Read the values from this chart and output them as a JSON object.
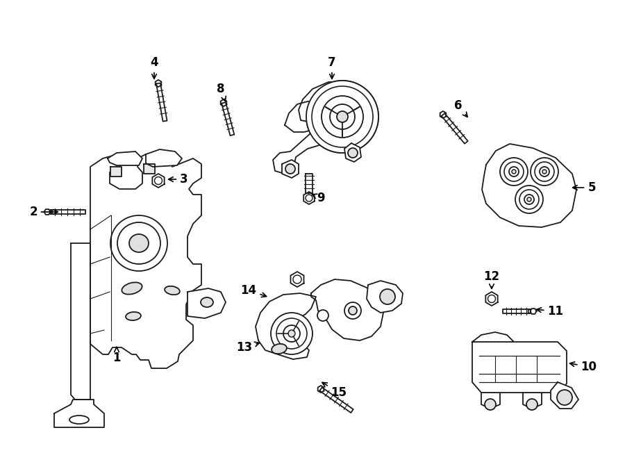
{
  "background": "#ffffff",
  "line_color": "#1a1a1a",
  "callouts": [
    [
      "1",
      168,
      515,
      168,
      495
    ],
    [
      "2",
      48,
      305,
      88,
      305
    ],
    [
      "3",
      265,
      258,
      238,
      258
    ],
    [
      "4",
      222,
      90,
      222,
      118
    ],
    [
      "5",
      852,
      270,
      820,
      270
    ],
    [
      "6",
      660,
      152,
      676,
      172
    ],
    [
      "7",
      478,
      90,
      478,
      118
    ],
    [
      "8",
      318,
      128,
      326,
      150
    ],
    [
      "9",
      462,
      285,
      445,
      278
    ],
    [
      "10",
      848,
      528,
      816,
      522
    ],
    [
      "11",
      800,
      448,
      768,
      445
    ],
    [
      "12",
      708,
      398,
      708,
      420
    ],
    [
      "13",
      352,
      500,
      378,
      492
    ],
    [
      "14",
      358,
      418,
      388,
      428
    ],
    [
      "15",
      488,
      565,
      460,
      548
    ]
  ]
}
